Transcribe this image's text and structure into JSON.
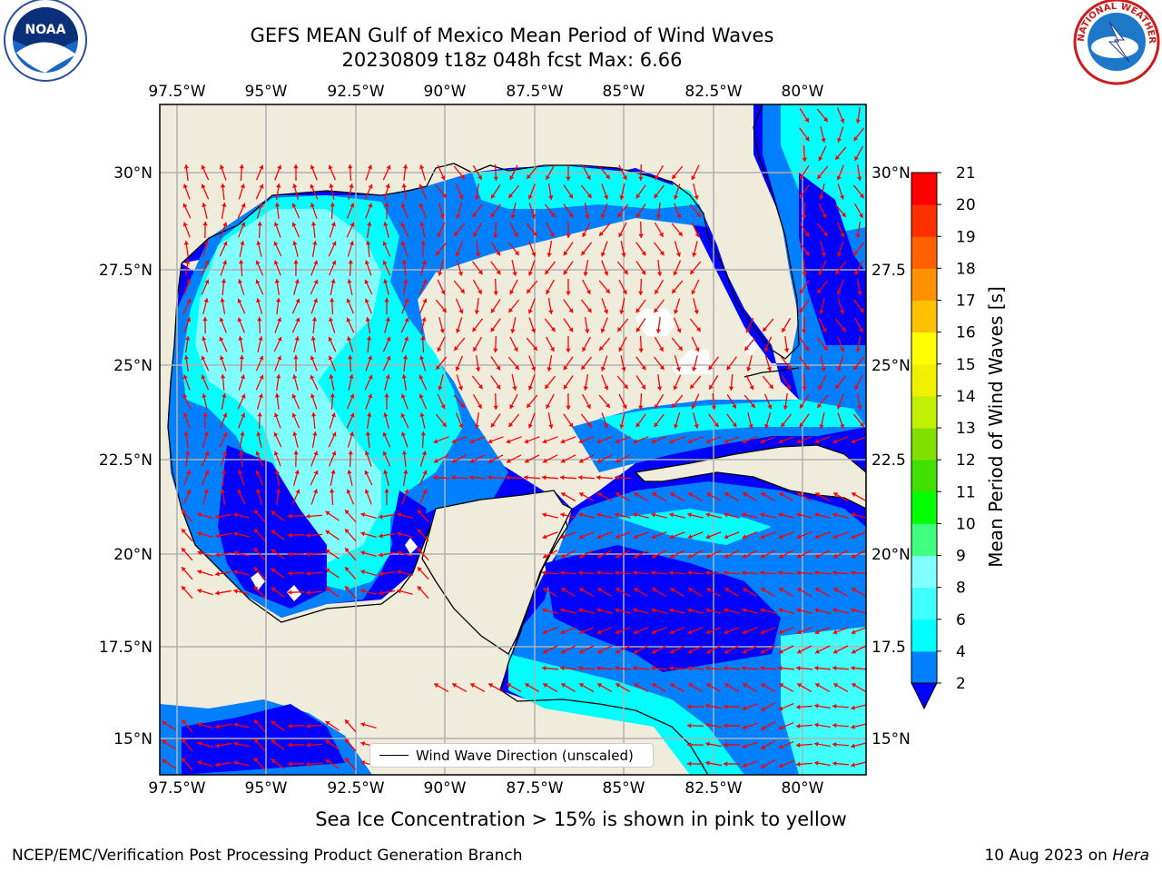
{
  "title": {
    "line1": "GEFS MEAN Gulf of Mexico Mean Period of Wind Waves",
    "line2": "20230809 t18z 048h fcst   Max: 6.66"
  },
  "map": {
    "lon_labels": [
      "97.5°W",
      "95°W",
      "92.5°W",
      "90°W",
      "87.5°W",
      "85°W",
      "82.5°W",
      "80°W"
    ],
    "lat_labels_left": [
      "30°N",
      "27.5°N",
      "25°N",
      "22.5°N",
      "20°N",
      "17.5°N",
      "15°N"
    ],
    "lat_labels_right": [
      "30°N",
      "27.5",
      "25°N",
      "22.5",
      "20°N",
      "17.5",
      "15°N"
    ],
    "colors": {
      "land": "#efecdc",
      "grid": "#b0b0b0",
      "arrow": "#ff0000",
      "coast": "#000000"
    }
  },
  "legend": {
    "label": "Wind Wave Direction (unscaled)"
  },
  "colorbar": {
    "label": "Mean Period of Wind Waves [s]",
    "ticks": [
      "2",
      "4",
      "6",
      "8",
      "9",
      "10",
      "11",
      "12",
      "13",
      "14",
      "15",
      "16",
      "17",
      "18",
      "19",
      "20",
      "21"
    ],
    "colors": [
      "#0000ff",
      "#0080ff",
      "#00ffff",
      "#40ffff",
      "#80ffff",
      "#40ff80",
      "#00ff00",
      "#40e000",
      "#80e000",
      "#c0f000",
      "#f0f000",
      "#ffff00",
      "#ffc000",
      "#ff9000",
      "#ff6000",
      "#ff3000",
      "#ff0000"
    ]
  },
  "logos": {
    "left": "NOAA",
    "right": "NATIONAL WEATHER SERVICE"
  },
  "note": "Sea Ice Concentration > 15% is shown in pink to yellow",
  "footer": {
    "left": "NCEP/EMC/Verification Post Processing Product Generation Branch",
    "right_date": "10 Aug 2023 on ",
    "right_machine": "Hera"
  }
}
